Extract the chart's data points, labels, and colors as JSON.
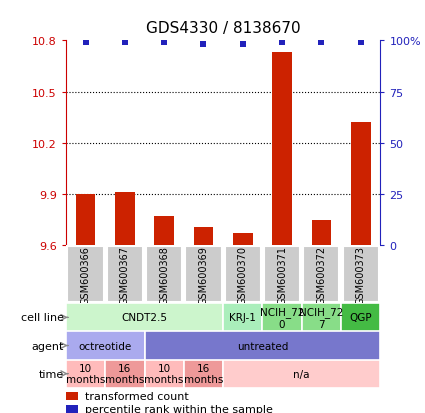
{
  "title": "GDS4330 / 8138670",
  "samples": [
    "GSM600366",
    "GSM600367",
    "GSM600368",
    "GSM600369",
    "GSM600370",
    "GSM600371",
    "GSM600372",
    "GSM600373"
  ],
  "bar_values": [
    9.9,
    9.91,
    9.77,
    9.71,
    9.67,
    10.73,
    9.75,
    10.32
  ],
  "dot_values": [
    99,
    99,
    99,
    98,
    98,
    99,
    99,
    99
  ],
  "ylim": [
    9.6,
    10.8
  ],
  "yticks_left": [
    9.6,
    9.9,
    10.2,
    10.5,
    10.8
  ],
  "ytick_labels_left": [
    "9.6",
    "9.9",
    "10.2",
    "10.5",
    "10.8"
  ],
  "yticks_right": [
    0,
    25,
    50,
    75,
    100
  ],
  "ytick_labels_right": [
    "0",
    "25",
    "50",
    "75",
    "100%"
  ],
  "dotted_lines": [
    9.9,
    10.2,
    10.5
  ],
  "bar_color": "#cc2200",
  "dot_color": "#2222bb",
  "sample_box_color": "#cccccc",
  "cell_line_groups": [
    {
      "label": "CNDT2.5",
      "start": 0,
      "end": 4,
      "color": "#ccf5cc"
    },
    {
      "label": "KRJ-1",
      "start": 4,
      "end": 5,
      "color": "#aaeebb"
    },
    {
      "label": "NCIH_72\n0",
      "start": 5,
      "end": 6,
      "color": "#88dd88"
    },
    {
      "label": "NCIH_72\n7",
      "start": 6,
      "end": 7,
      "color": "#88dd88"
    },
    {
      "label": "QGP",
      "start": 7,
      "end": 8,
      "color": "#44bb44"
    }
  ],
  "agent_groups": [
    {
      "label": "octreotide",
      "start": 0,
      "end": 2,
      "color": "#aaaaee"
    },
    {
      "label": "untreated",
      "start": 2,
      "end": 8,
      "color": "#7777cc"
    }
  ],
  "time_groups": [
    {
      "label": "10\nmonths",
      "start": 0,
      "end": 1,
      "color": "#ffbbbb"
    },
    {
      "label": "16\nmonths",
      "start": 1,
      "end": 2,
      "color": "#ee9999"
    },
    {
      "label": "10\nmonths",
      "start": 2,
      "end": 3,
      "color": "#ffbbbb"
    },
    {
      "label": "16\nmonths",
      "start": 3,
      "end": 4,
      "color": "#ee9999"
    },
    {
      "label": "n/a",
      "start": 4,
      "end": 8,
      "color": "#ffcccc"
    }
  ],
  "legend_bar_label": "transformed count",
  "legend_dot_label": "percentile rank within the sample",
  "row_labels": [
    "cell line",
    "agent",
    "time"
  ],
  "left_axis_color": "#cc0000",
  "right_axis_color": "#2222bb"
}
